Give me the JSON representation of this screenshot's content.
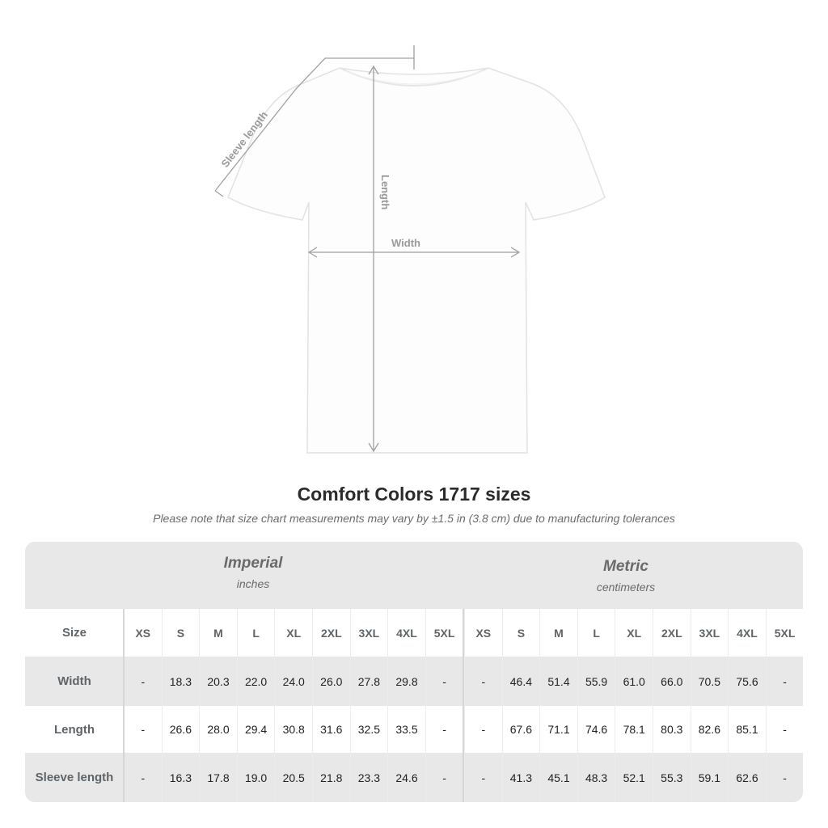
{
  "diagram": {
    "labels": {
      "sleeve": "Sleeve length",
      "length": "Length",
      "width": "Width"
    },
    "colors": {
      "shirt": "#ffffff",
      "outline": "#dcdcdc",
      "arrow": "#9a9a9a"
    }
  },
  "title": "Comfort Colors 1717 sizes",
  "subtitle": "Please note that size chart measurements may vary by ±1.5 in (3.8 cm) due to manufacturing tolerances",
  "table": {
    "imperial": {
      "heading": "Imperial",
      "unit": "inches"
    },
    "metric": {
      "heading": "Metric",
      "unit": "centimeters"
    },
    "size_label": "Size",
    "sizes": [
      "XS",
      "S",
      "M",
      "L",
      "XL",
      "2XL",
      "3XL",
      "4XL",
      "5XL"
    ],
    "rows": [
      {
        "label": "Width",
        "imperial": [
          "-",
          "18.3",
          "20.3",
          "22.0",
          "24.0",
          "26.0",
          "27.8",
          "29.8",
          "-"
        ],
        "metric": [
          "-",
          "46.4",
          "51.4",
          "55.9",
          "61.0",
          "66.0",
          "70.5",
          "75.6",
          "-"
        ]
      },
      {
        "label": "Length",
        "imperial": [
          "-",
          "26.6",
          "28.0",
          "29.4",
          "30.8",
          "31.6",
          "32.5",
          "33.5",
          "-"
        ],
        "metric": [
          "-",
          "67.6",
          "71.1",
          "74.6",
          "78.1",
          "80.3",
          "82.6",
          "85.1",
          "-"
        ]
      },
      {
        "label": "Sleeve length",
        "imperial": [
          "-",
          "16.3",
          "17.8",
          "19.0",
          "20.5",
          "21.8",
          "23.3",
          "24.6",
          "-"
        ],
        "metric": [
          "-",
          "41.3",
          "45.1",
          "48.3",
          "52.1",
          "55.3",
          "59.1",
          "62.6",
          "-"
        ]
      }
    ]
  }
}
